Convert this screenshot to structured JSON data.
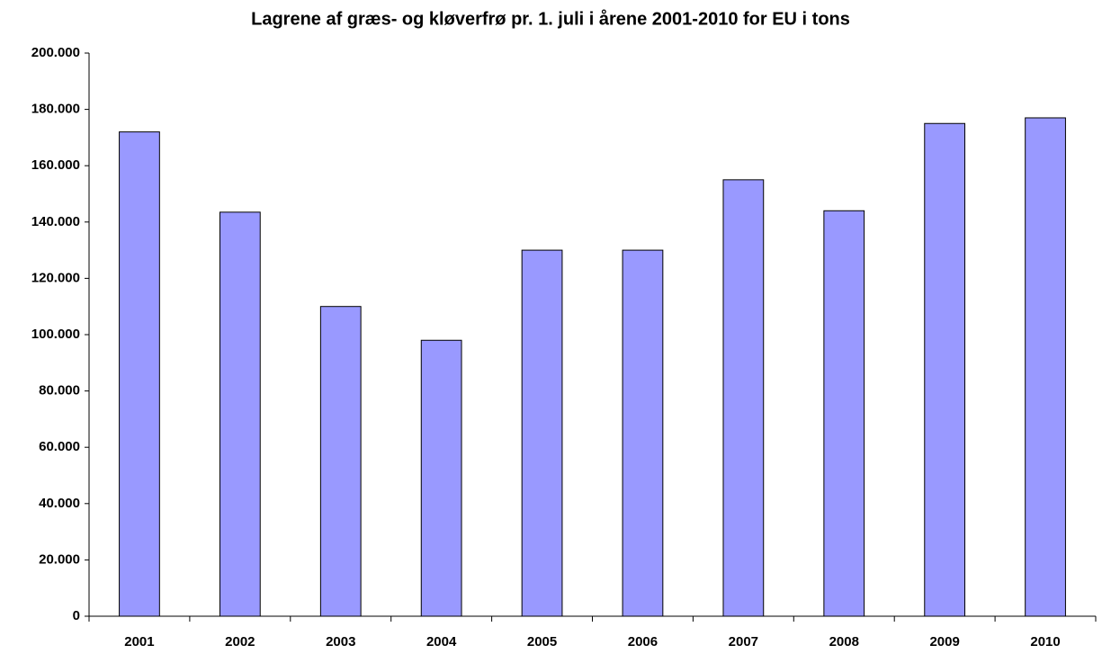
{
  "chart_data": {
    "type": "bar",
    "title": "Lagrene af græs- og kløverfrø pr. 1. juli i årene 2001-2010 for EU i tons",
    "categories": [
      "2001",
      "2002",
      "2003",
      "2004",
      "2005",
      "2006",
      "2007",
      "2008",
      "2009",
      "2010"
    ],
    "values": [
      172000,
      143500,
      110000,
      98000,
      130000,
      130000,
      155000,
      144000,
      175000,
      177000
    ],
    "color": "#9999ff",
    "ylim": [
      0,
      200000
    ],
    "yticks": [
      0,
      {
        "value": 20000,
        "label": "20.000"
      },
      {
        "value": 40000,
        "label": "40.000"
      },
      {
        "value": 60000,
        "label": "60.000"
      },
      {
        "value": 80000,
        "label": "80.000"
      },
      {
        "value": 100000,
        "label": "100.000"
      },
      {
        "value": 120000,
        "label": "120.000"
      },
      {
        "value": 140000,
        "label": "140.000"
      },
      {
        "value": 160000,
        "label": "160.000"
      },
      {
        "value": 180000,
        "label": "180.000"
      },
      {
        "value": 200000,
        "label": "200.000"
      }
    ],
    "grid": false
  }
}
